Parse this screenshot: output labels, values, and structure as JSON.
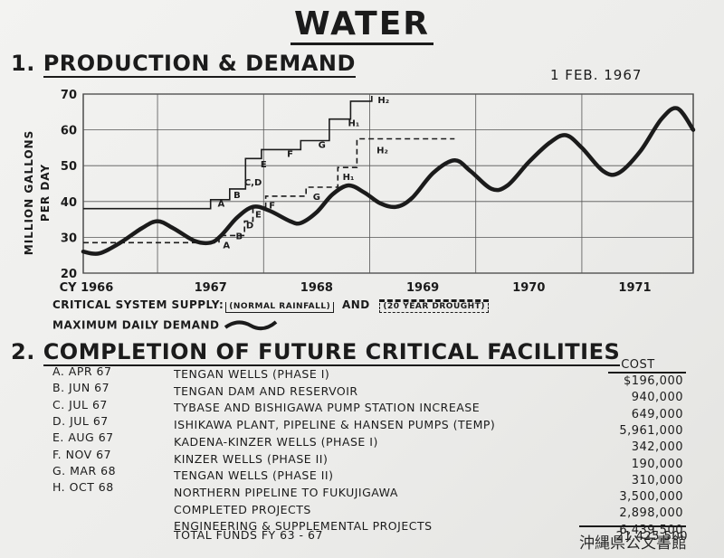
{
  "title": "WATER",
  "section1": {
    "number": "1.",
    "title": "PRODUCTION & DEMAND",
    "date": "1 FEB. 1967"
  },
  "chart_data": {
    "type": "line",
    "ylabel": "MILLION GALLONS PER DAY",
    "ylim": [
      20,
      70
    ],
    "yticks": [
      20,
      30,
      40,
      50,
      60,
      70
    ],
    "xlim": [
      1965.8,
      1971.55
    ],
    "xticks": [
      {
        "label": "CY 1966",
        "x": 1966.0
      },
      {
        "label": "1967",
        "x": 1967.0
      },
      {
        "label": "1968",
        "x": 1968.0
      },
      {
        "label": "1969",
        "x": 1969.0
      },
      {
        "label": "1970",
        "x": 1970.0
      },
      {
        "label": "1971",
        "x": 1971.0
      }
    ],
    "grid": true,
    "series": [
      {
        "style": "solid-step",
        "points": [
          [
            1965.8,
            38
          ],
          [
            1967.0,
            38
          ],
          [
            1967.0,
            40.5
          ],
          [
            1967.18,
            40.5
          ],
          [
            1967.18,
            43.5
          ],
          [
            1967.33,
            43.5
          ],
          [
            1967.33,
            52
          ],
          [
            1967.48,
            52
          ],
          [
            1967.48,
            54.5
          ],
          [
            1967.85,
            54.5
          ],
          [
            1967.85,
            57
          ],
          [
            1968.12,
            57
          ],
          [
            1968.12,
            63
          ],
          [
            1968.32,
            63
          ],
          [
            1968.32,
            68
          ],
          [
            1968.52,
            68
          ],
          [
            1968.52,
            69.5
          ]
        ],
        "markers": [
          {
            "label": "A",
            "x": 1967.1,
            "y": 38.5
          },
          {
            "label": "B",
            "x": 1967.25,
            "y": 41
          },
          {
            "label": "C,D",
            "x": 1967.4,
            "y": 44.5
          },
          {
            "label": "E",
            "x": 1967.5,
            "y": 49.5
          },
          {
            "label": "F",
            "x": 1967.75,
            "y": 52.5
          },
          {
            "label": "G",
            "x": 1968.05,
            "y": 55
          },
          {
            "label": "H₁",
            "x": 1968.35,
            "y": 61
          },
          {
            "label": "H₂",
            "x": 1968.63,
            "y": 67.5
          }
        ]
      },
      {
        "style": "dashed-step",
        "points": [
          [
            1965.8,
            28.5
          ],
          [
            1967.08,
            28.5
          ],
          [
            1967.08,
            30.5
          ],
          [
            1967.32,
            30.5
          ],
          [
            1967.32,
            34.5
          ],
          [
            1967.4,
            34.5
          ],
          [
            1967.4,
            38.5
          ],
          [
            1967.52,
            38.5
          ],
          [
            1967.52,
            41.5
          ],
          [
            1967.9,
            41.5
          ],
          [
            1967.9,
            44
          ],
          [
            1968.2,
            44
          ],
          [
            1968.2,
            49.5
          ],
          [
            1968.38,
            49.5
          ],
          [
            1968.38,
            57.5
          ],
          [
            1969.3,
            57.5
          ]
        ],
        "markers": [
          {
            "label": "A",
            "x": 1967.15,
            "y": 27
          },
          {
            "label": "B",
            "x": 1967.27,
            "y": 29.5
          },
          {
            "label": "D",
            "x": 1967.37,
            "y": 32.5
          },
          {
            "label": "E",
            "x": 1967.45,
            "y": 35.5
          },
          {
            "label": "F",
            "x": 1967.58,
            "y": 38
          },
          {
            "label": "G",
            "x": 1968.0,
            "y": 40.5
          },
          {
            "label": "H₁",
            "x": 1968.3,
            "y": 46
          },
          {
            "label": "H₂",
            "x": 1968.62,
            "y": 53.5
          }
        ]
      },
      {
        "style": "thick-wave",
        "points": [
          [
            1965.8,
            26
          ],
          [
            1965.95,
            25.5
          ],
          [
            1966.15,
            28.5
          ],
          [
            1966.35,
            32.5
          ],
          [
            1966.5,
            34.5
          ],
          [
            1966.65,
            32.5
          ],
          [
            1966.85,
            29
          ],
          [
            1967.0,
            28.5
          ],
          [
            1967.1,
            30.5
          ],
          [
            1967.25,
            35.5
          ],
          [
            1967.4,
            38.5
          ],
          [
            1967.55,
            37.5
          ],
          [
            1967.75,
            34.5
          ],
          [
            1967.85,
            34
          ],
          [
            1968.0,
            37
          ],
          [
            1968.15,
            42
          ],
          [
            1968.3,
            44.5
          ],
          [
            1968.45,
            42.5
          ],
          [
            1968.6,
            39.5
          ],
          [
            1968.75,
            38.5
          ],
          [
            1968.9,
            41
          ],
          [
            1969.1,
            48
          ],
          [
            1969.3,
            51.5
          ],
          [
            1969.45,
            48.5
          ],
          [
            1969.65,
            43.5
          ],
          [
            1969.8,
            44.5
          ],
          [
            1970.0,
            51
          ],
          [
            1970.2,
            56.5
          ],
          [
            1970.35,
            58.5
          ],
          [
            1970.5,
            55
          ],
          [
            1970.7,
            48.5
          ],
          [
            1970.85,
            48
          ],
          [
            1971.05,
            54
          ],
          [
            1971.25,
            63
          ],
          [
            1971.4,
            66
          ],
          [
            1971.55,
            60
          ]
        ]
      }
    ]
  },
  "legend": {
    "supply_label": "CRITICAL SYSTEM SUPPLY:",
    "normal": "NORMAL RAINFALL",
    "and": "AND",
    "drought": "20 YEAR DROUGHT",
    "demand_label": "MAXIMUM DAILY DEMAND"
  },
  "section2": {
    "number": "2.",
    "title": "COMPLETION OF FUTURE CRITICAL FACILITIES",
    "cost_header": "COST",
    "rows": [
      {
        "date": "A. APR 67",
        "desc": "TENGAN WELLS (PHASE I)",
        "cost": "$196,000"
      },
      {
        "date": "B. JUN 67",
        "desc": "TENGAN DAM AND RESERVOIR",
        "cost": "940,000"
      },
      {
        "date": "C. JUL 67",
        "desc": "TYBASE AND BISHIGAWA PUMP STATION INCREASE",
        "cost": "649,000"
      },
      {
        "date": "D. JUL 67",
        "desc": "ISHIKAWA PLANT, PIPELINE & HANSEN PUMPS (TEMP)",
        "cost": "5,961,000"
      },
      {
        "date": "E. AUG 67",
        "desc": "KADENA-KINZER WELLS (PHASE I)",
        "cost": "342,000"
      },
      {
        "date": "F. NOV 67",
        "desc": "KINZER WELLS (PHASE II)",
        "cost": "190,000"
      },
      {
        "date": "G. MAR 68",
        "desc": "TENGAN WELLS (PHASE II)",
        "cost": "310,000"
      },
      {
        "date": "H. OCT 68",
        "desc": "NORTHERN PIPELINE TO FUKUJIGAWA",
        "cost": "3,500,000"
      },
      {
        "date": "",
        "desc": "COMPLETED PROJECTS",
        "cost": "2,898,000"
      },
      {
        "date": "",
        "desc": "ENGINEERING & SUPPLEMENTAL PROJECTS",
        "cost": "6,439,500"
      }
    ],
    "total_label": "TOTAL FUNDS FY 63 - 67",
    "total_value": "21,425,500"
  },
  "stamp": "沖縄県公文書館"
}
